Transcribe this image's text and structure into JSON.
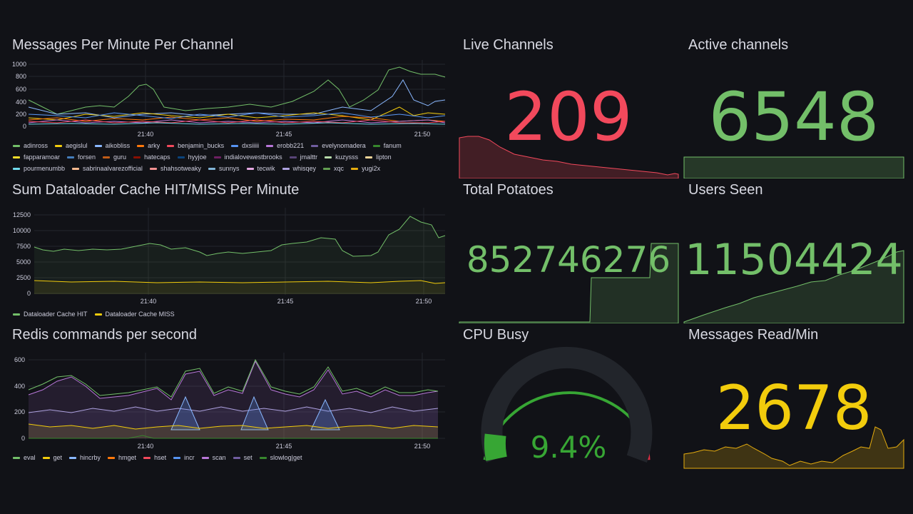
{
  "colors": {
    "background": "#111217",
    "red": "#f2495c",
    "green": "#73bf69",
    "yellow": "#f2cc0c",
    "gauge_green": "#37a634",
    "gauge_orange": "#ff780a",
    "gauge_red": "#e02f44"
  },
  "panels": {
    "messages": {
      "title": "Messages Per Minute Per Channel",
      "y_ticks": [
        "1000",
        "800",
        "600",
        "400",
        "200",
        "0"
      ],
      "x_ticks": [
        "21:40",
        "21:45",
        "21:50"
      ],
      "legend": [
        {
          "name": "adinross",
          "color": "#73bf69"
        },
        {
          "name": "aegislul",
          "color": "#f2cc0c"
        },
        {
          "name": "aikobliss",
          "color": "#8ab8ff"
        },
        {
          "name": "arky",
          "color": "#ff780a"
        },
        {
          "name": "benjamin_bucks",
          "color": "#f2495c"
        },
        {
          "name": "dxsiiiii",
          "color": "#5794f2"
        },
        {
          "name": "erobb221",
          "color": "#b877d9"
        },
        {
          "name": "evelynomadera",
          "color": "#705da0"
        },
        {
          "name": "fanum",
          "color": "#37872d"
        },
        {
          "name": "fapparamoar",
          "color": "#fade2a"
        },
        {
          "name": "forsen",
          "color": "#447ebc"
        },
        {
          "name": "guru",
          "color": "#c15c17"
        },
        {
          "name": "hatecaps",
          "color": "#890f02"
        },
        {
          "name": "hyyjoe",
          "color": "#0a437c"
        },
        {
          "name": "indialovewestbrooks",
          "color": "#6d1f62"
        },
        {
          "name": "jmalttr",
          "color": "#584477"
        },
        {
          "name": "kuzysss",
          "color": "#b7dbab"
        },
        {
          "name": "lipton",
          "color": "#f4d598"
        },
        {
          "name": "pourmenumbb",
          "color": "#70dbed"
        },
        {
          "name": "sabrinaalvarezofficial",
          "color": "#f9ba8f"
        },
        {
          "name": "shahsotweaky",
          "color": "#f29191"
        },
        {
          "name": "sunnys",
          "color": "#82b5d8"
        },
        {
          "name": "tecwik",
          "color": "#e5a8e2"
        },
        {
          "name": "whisqey",
          "color": "#aea2e0"
        },
        {
          "name": "xqc",
          "color": "#629e51"
        },
        {
          "name": "yugi2x",
          "color": "#e5ac0e"
        }
      ]
    },
    "cache": {
      "title": "Sum Dataloader Cache HIT/MISS Per Minute",
      "y_ticks": [
        "12500",
        "10000",
        "7500",
        "5000",
        "2500",
        "0"
      ],
      "x_ticks": [
        "21:40",
        "21:45",
        "21:50"
      ],
      "legend": [
        {
          "name": "Dataloader Cache HIT",
          "color": "#73bf69"
        },
        {
          "name": "Dataloader Cache MISS",
          "color": "#f2cc0c"
        }
      ]
    },
    "redis": {
      "title": "Redis commands per second",
      "y_ticks": [
        "600",
        "400",
        "200",
        "0"
      ],
      "x_ticks": [
        "21:40",
        "21:45",
        "21:50"
      ],
      "legend": [
        {
          "name": "eval",
          "color": "#73bf69"
        },
        {
          "name": "get",
          "color": "#f2cc0c"
        },
        {
          "name": "hincrby",
          "color": "#8ab8ff"
        },
        {
          "name": "hmget",
          "color": "#ff780a"
        },
        {
          "name": "hset",
          "color": "#f2495c"
        },
        {
          "name": "incr",
          "color": "#5794f2"
        },
        {
          "name": "scan",
          "color": "#b877d9"
        },
        {
          "name": "set",
          "color": "#705da0"
        },
        {
          "name": "slowlog|get",
          "color": "#37872d"
        }
      ]
    },
    "live_channels": {
      "title": "Live Channels",
      "value": "209"
    },
    "active_channels": {
      "title": "Active channels",
      "value": "6548"
    },
    "total_potatoes": {
      "title": "Total Potatoes",
      "value": "852746276"
    },
    "users_seen": {
      "title": "Users Seen",
      "value": "11504424"
    },
    "cpu_busy": {
      "title": "CPU Busy",
      "value": "9.4%",
      "percent": 9.4
    },
    "messages_read": {
      "title": "Messages Read/Min",
      "value": "2678"
    }
  }
}
